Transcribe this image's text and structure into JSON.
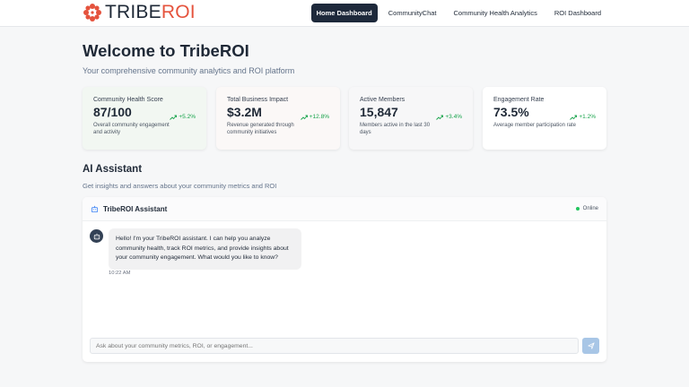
{
  "brand": {
    "name_part1": "TRIBE",
    "name_part2": "ROI",
    "primary": "#1f2937",
    "accent": "#e5533d",
    "logo_icon": "flower-logo-icon"
  },
  "nav": {
    "items": [
      {
        "label": "Home Dashboard",
        "active": true
      },
      {
        "label": "CommunityChat",
        "active": false
      },
      {
        "label": "Community Health Analytics",
        "active": false
      },
      {
        "label": "ROI Dashboard",
        "active": false
      }
    ]
  },
  "hero": {
    "title": "Welcome to TribeROI",
    "subtitle": "Your comprehensive community analytics and ROI platform"
  },
  "stats": [
    {
      "label": "Community Health Score",
      "value": "87/100",
      "change": "+5.2%",
      "description": "Overall community engagement and activity",
      "icon": "trend-up-icon"
    },
    {
      "label": "Total Business Impact",
      "value": "$3.2M",
      "change": "+12.8%",
      "description": "Revenue generated through community initiatives",
      "icon": "trend-up-icon"
    },
    {
      "label": "Active Members",
      "value": "15,847",
      "change": "+3.4%",
      "description": "Members active in the last 30 days",
      "icon": "trend-up-icon"
    },
    {
      "label": "Engagement Rate",
      "value": "73.5%",
      "change": "+1.2%",
      "description": "Average member participation rate",
      "icon": "trend-up-icon"
    }
  ],
  "assistant": {
    "section_title": "AI Assistant",
    "section_subtitle": "Get insights and answers about your community metrics and ROI",
    "chat_title": "TribeROI Assistant",
    "status": "Online",
    "status_color": "#22c55e",
    "messages": [
      {
        "sender": "assistant",
        "text": "Hello! I'm your TribeROI assistant. I can help you analyze community health, track ROI metrics, and provide insights about your community engagement. What would you like to know?",
        "time": "10:22 AM"
      }
    ],
    "input_placeholder": "Ask about your community metrics, ROI, or engagement...",
    "send_icon": "send-icon"
  }
}
